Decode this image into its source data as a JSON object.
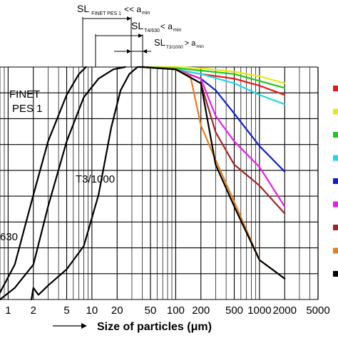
{
  "chart_data": {
    "type": "line",
    "title": "",
    "xlabel": "Size of particles (μm)",
    "ylabel": "",
    "x_scale": "log",
    "xlim": [
      0.8,
      5000
    ],
    "grid": true,
    "x_ticks": [
      1,
      2,
      5,
      10,
      20,
      50,
      100,
      200,
      500,
      1000,
      2000,
      5000
    ],
    "x_tick_labels": [
      "1",
      "2",
      "5",
      "10",
      "20",
      "50",
      "100",
      "200",
      "500",
      "1000",
      "2000",
      "5000"
    ],
    "annotations": [
      {
        "id": "sl-finet",
        "text": "SL",
        "sub": "FINET PES 1",
        "rel": "<< a",
        "rel_sub": "min"
      },
      {
        "id": "sl-t4",
        "text": "SL",
        "sub": "T4/630",
        "rel": "< a",
        "rel_sub": "min"
      },
      {
        "id": "sl-t3",
        "text": "SL",
        "sub": "T3/1000",
        "rel": "> a",
        "rel_sub": "min"
      }
    ],
    "curve_labels": {
      "finet_line1": "FINET",
      "finet_line2": "PES 1",
      "t3": "T3/1000",
      "t4": "630"
    },
    "series": [
      {
        "id": "finet",
        "color": "#000000",
        "x": [
          0.8,
          1.2,
          2,
          3,
          5,
          7,
          8.5
        ],
        "y": [
          0.03,
          0.15,
          0.45,
          0.68,
          0.88,
          0.97,
          1.0
        ]
      },
      {
        "id": "t4",
        "color": "#000000",
        "x": [
          0.8,
          1.2,
          2,
          3,
          5,
          8,
          12,
          18,
          25
        ],
        "y": [
          0.0,
          0.05,
          0.15,
          0.4,
          0.68,
          0.87,
          0.95,
          0.99,
          1.0
        ]
      },
      {
        "id": "t3",
        "color": "#000000",
        "x": [
          1.9,
          2,
          2.3,
          3,
          5,
          8,
          12,
          17,
          22,
          28,
          35,
          40
        ],
        "y": [
          0.0,
          0.05,
          0.02,
          0.06,
          0.13,
          0.23,
          0.45,
          0.74,
          0.9,
          0.97,
          1.0,
          1.0
        ]
      },
      {
        "id": "black",
        "color": "#000000",
        "x": [
          40,
          100,
          200,
          300,
          500,
          1000,
          2000
        ],
        "y": [
          1.0,
          0.99,
          0.93,
          0.58,
          0.4,
          0.17,
          0.09
        ]
      },
      {
        "id": "orange",
        "color": "#e87d20",
        "x": [
          40,
          100,
          150,
          200,
          300,
          500,
          1000,
          2000
        ],
        "y": [
          1.0,
          0.99,
          0.96,
          0.75,
          0.6,
          0.42,
          0.17,
          0.09
        ]
      },
      {
        "id": "darkred",
        "color": "#a0242a",
        "x": [
          40,
          100,
          200,
          300,
          500,
          1000,
          2000
        ],
        "y": [
          1.0,
          0.99,
          0.93,
          0.72,
          0.58,
          0.49,
          0.37
        ]
      },
      {
        "id": "magenta",
        "color": "#e81ee8",
        "x": [
          40,
          100,
          200,
          300,
          500,
          1000,
          2000
        ],
        "y": [
          1.0,
          0.99,
          0.95,
          0.79,
          0.68,
          0.57,
          0.4
        ]
      },
      {
        "id": "blue",
        "color": "#1020c8",
        "x": [
          40,
          100,
          200,
          300,
          500,
          1000,
          2000
        ],
        "y": [
          1.0,
          0.99,
          0.95,
          0.9,
          0.8,
          0.66,
          0.55
        ]
      },
      {
        "id": "cyan",
        "color": "#20d8e8",
        "x": [
          40,
          100,
          200,
          500,
          1000,
          2000
        ],
        "y": [
          1.0,
          0.99,
          0.97,
          0.93,
          0.88,
          0.84
        ]
      },
      {
        "id": "red",
        "color": "#e81818",
        "x": [
          40,
          100,
          200,
          500,
          1000,
          2000
        ],
        "y": [
          1.0,
          0.99,
          0.97,
          0.95,
          0.92,
          0.88
        ]
      },
      {
        "id": "green",
        "color": "#20c820",
        "x": [
          40,
          100,
          200,
          500,
          1000,
          2000
        ],
        "y": [
          1.0,
          0.995,
          0.985,
          0.97,
          0.94,
          0.91
        ]
      },
      {
        "id": "yellow",
        "color": "#e8e818",
        "x": [
          40,
          100,
          200,
          500,
          1000,
          2000
        ],
        "y": [
          1.0,
          1.0,
          0.995,
          0.98,
          0.96,
          0.93
        ]
      }
    ],
    "legend": {
      "placement": "right",
      "markers": [
        "#e81818",
        "#e8e818",
        "#20c820",
        "#20d8e8",
        "#1020c8",
        "#e81ee8",
        "#a0242a",
        "#e87d20",
        "#000000"
      ]
    }
  }
}
